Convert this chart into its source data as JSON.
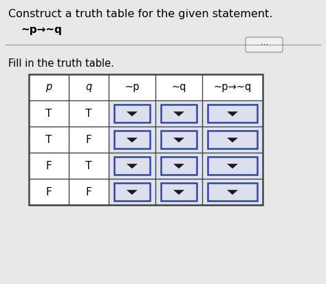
{
  "title": "Construct a truth table for the given statement.",
  "formula": "~p→~q",
  "subtitle": "Fill in the truth table.",
  "col_headers": [
    "p",
    "q",
    "~p",
    "~q",
    "~p→~q"
  ],
  "rows": [
    [
      "T",
      "T"
    ],
    [
      "T",
      "F"
    ],
    [
      "F",
      "T"
    ],
    [
      "F",
      "F"
    ]
  ],
  "plain_cols": [
    0,
    1
  ],
  "dropdown_cols": [
    2,
    3,
    4
  ],
  "fig_bg": "#e8e8e8",
  "cell_bg_plain": "#ffffff",
  "cell_bg_dropdown_outer": "#e0e4f0",
  "cell_bg_dropdown_inner": "#dce0ee",
  "header_bg": "#ffffff",
  "border_color_outer": "#444444",
  "border_color_inner": "#444444",
  "dropdown_border": "#3344aa",
  "arrow_color": "#1a1a1a",
  "separator_color": "#999999",
  "title_fontsize": 11.5,
  "formula_fontsize": 11,
  "subtitle_fontsize": 10.5,
  "header_fontsize": 10.5,
  "cell_fontsize": 11
}
